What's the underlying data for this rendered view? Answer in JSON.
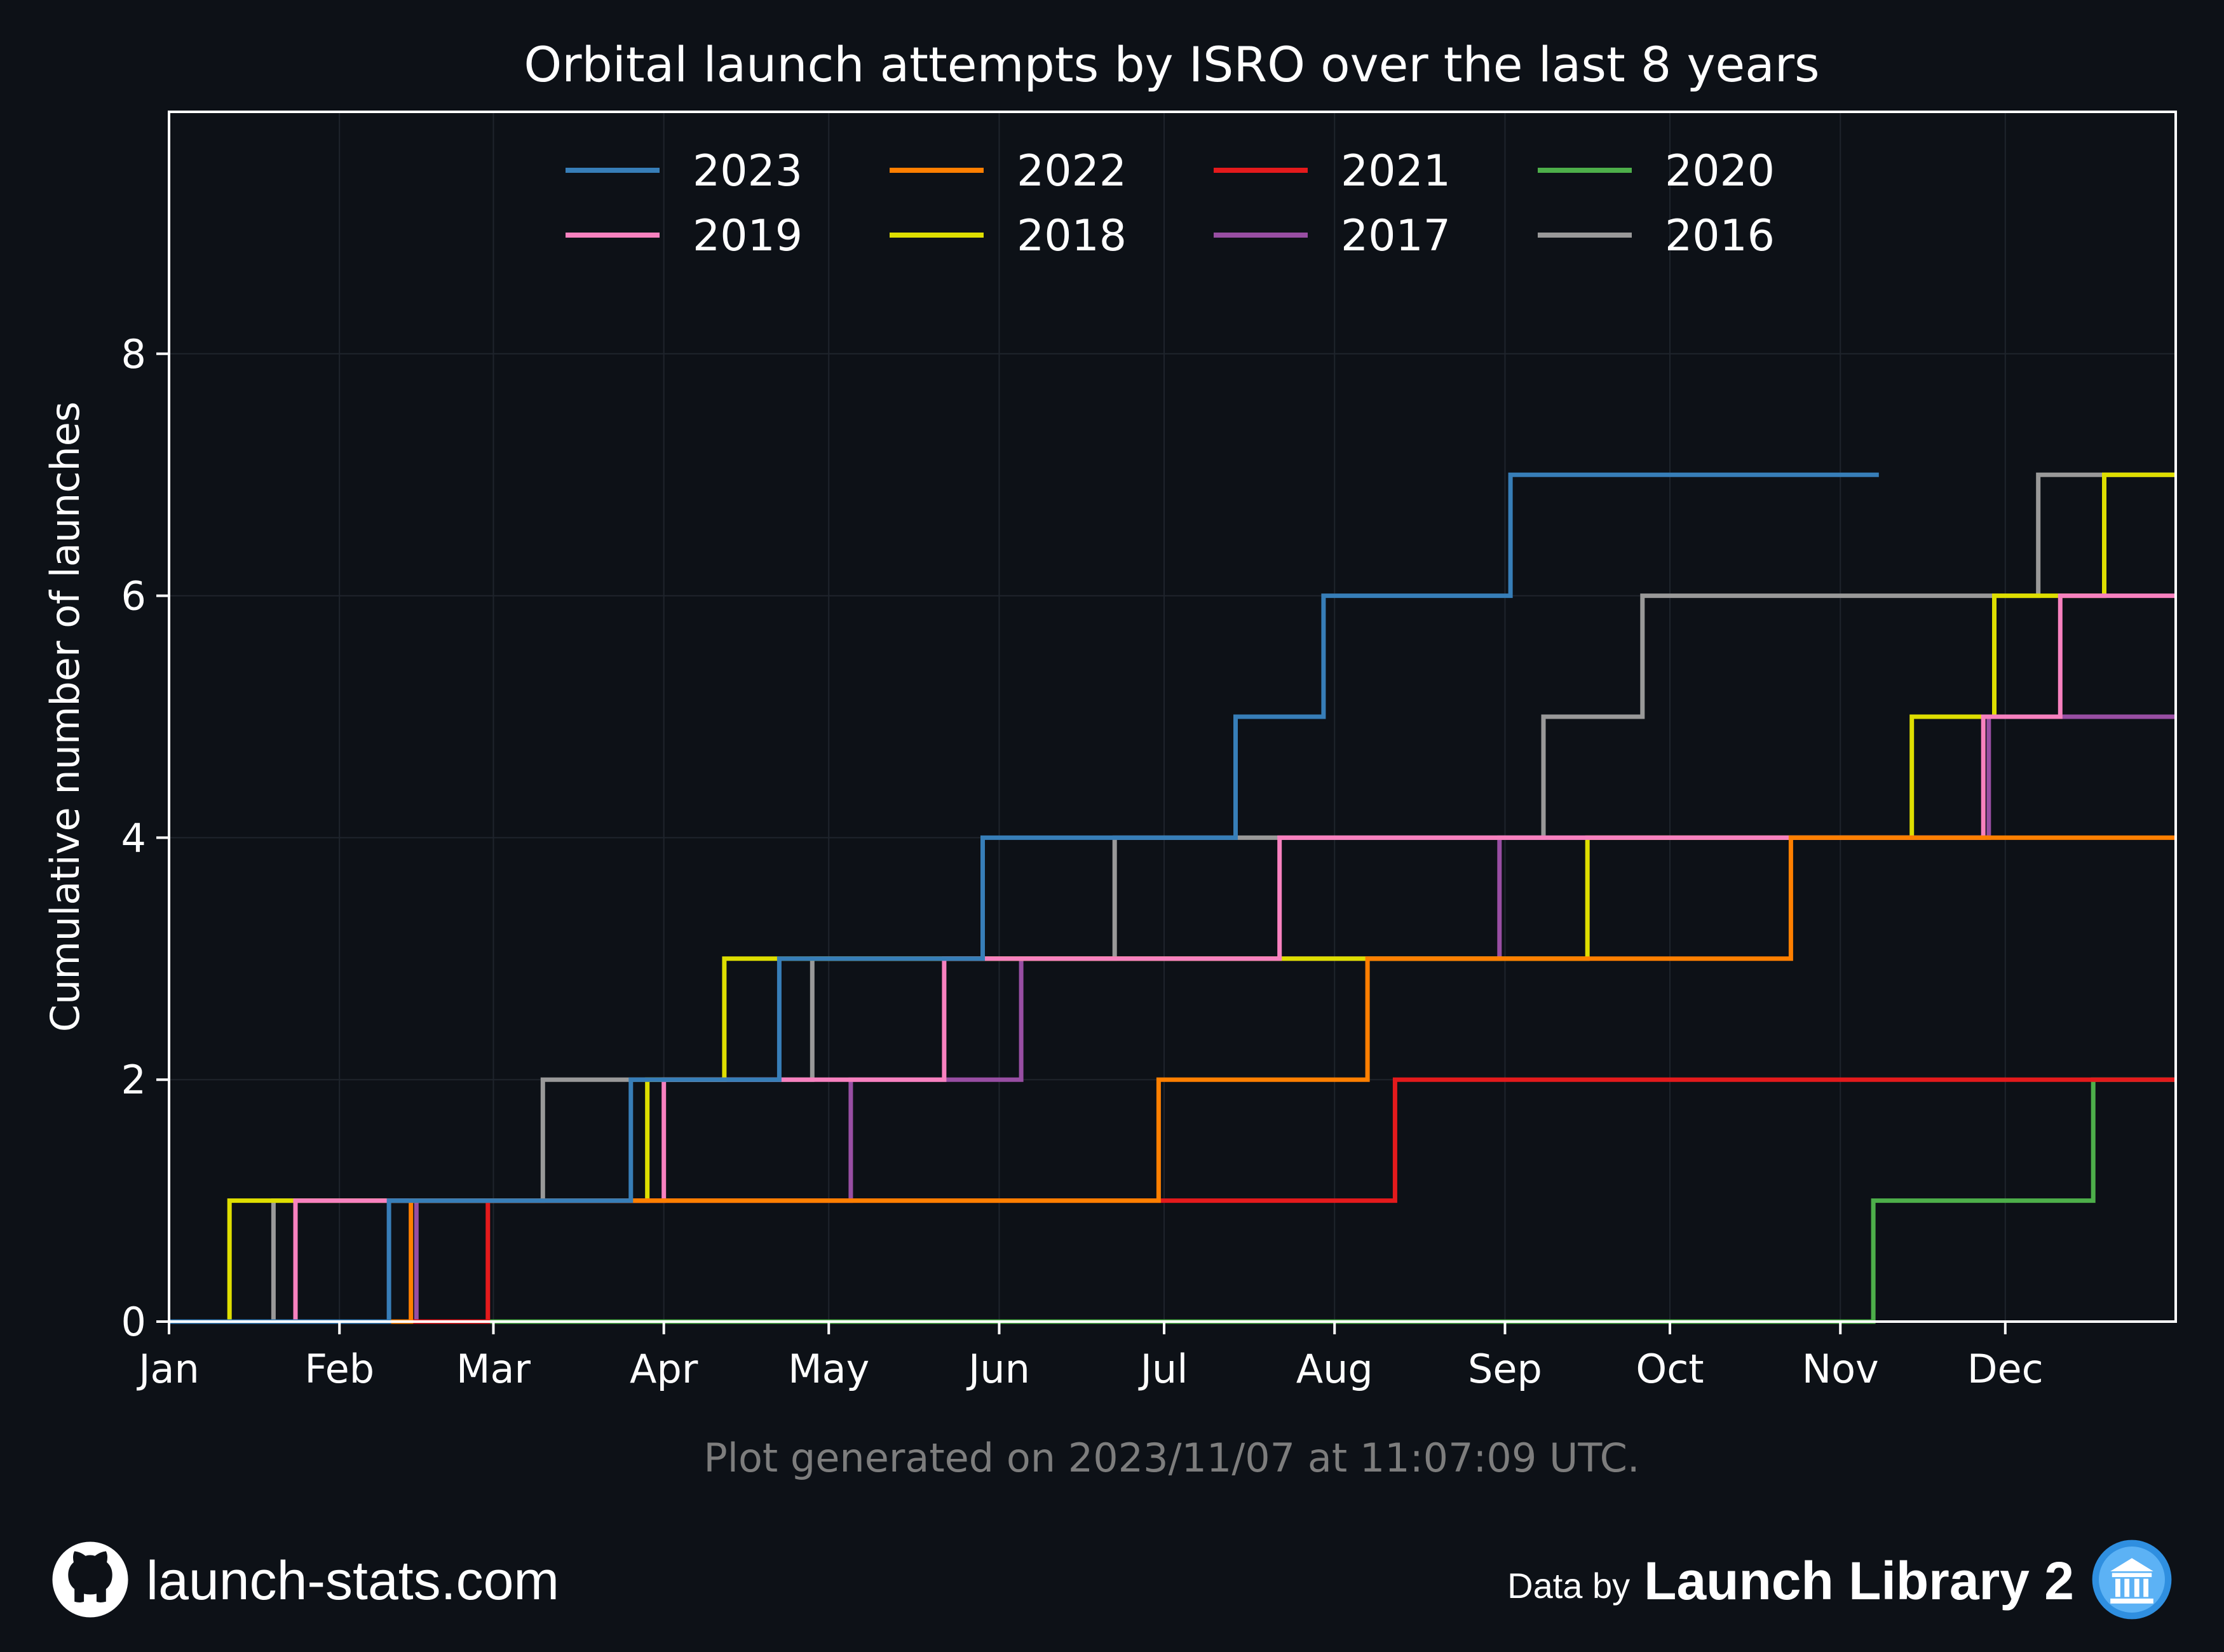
{
  "chart_data": {
    "type": "line",
    "step": true,
    "title": "Orbital launch attempts by ISRO over the last 8 years",
    "xlabel": "",
    "ylabel": "Cumulative number of launches",
    "x_ticks": [
      "Jan",
      "Feb",
      "Mar",
      "Apr",
      "May",
      "Jun",
      "Jul",
      "Aug",
      "Sep",
      "Oct",
      "Nov",
      "Dec"
    ],
    "y_ticks": [
      0,
      2,
      4,
      6,
      8
    ],
    "ylim": [
      0,
      10
    ],
    "xlim_days": [
      0,
      365
    ],
    "grid": true,
    "legend": "top-center",
    "series": [
      {
        "name": "2023",
        "color": "#377eb8",
        "end_day": 311,
        "events": [
          "2023-02-10",
          "2023-03-26",
          "2023-04-22",
          "2023-05-29",
          "2023-07-14",
          "2023-07-30",
          "2023-09-02"
        ]
      },
      {
        "name": "2022",
        "color": "#ff7f00",
        "end_day": 365,
        "events": [
          "2022-02-14",
          "2022-06-30",
          "2022-08-07",
          "2022-10-23"
        ]
      },
      {
        "name": "2021",
        "color": "#e41a1c",
        "end_day": 365,
        "events": [
          "2021-02-28",
          "2021-08-12"
        ]
      },
      {
        "name": "2020",
        "color": "#4daf4a",
        "end_day": 365,
        "events": [
          "2020-11-07",
          "2020-12-17"
        ]
      },
      {
        "name": "2019",
        "color": "#f781bf",
        "end_day": 365,
        "events": [
          "2019-01-24",
          "2019-04-01",
          "2019-05-22",
          "2019-07-22",
          "2019-11-27",
          "2019-12-11"
        ]
      },
      {
        "name": "2018",
        "color": "#dede00",
        "end_day": 365,
        "events": [
          "2018-01-12",
          "2018-03-29",
          "2018-04-12",
          "2018-09-16",
          "2018-11-14",
          "2018-11-29",
          "2018-12-19"
        ]
      },
      {
        "name": "2017",
        "color": "#984ea3",
        "end_day": 365,
        "events": [
          "2017-02-15",
          "2017-05-05",
          "2017-06-05",
          "2017-08-31",
          "2017-11-28"
        ]
      },
      {
        "name": "2016",
        "color": "#999999",
        "end_day": 365,
        "events": [
          "2016-01-20",
          "2016-03-10",
          "2016-04-28",
          "2016-06-22",
          "2016-09-08",
          "2016-09-26",
          "2016-12-07"
        ]
      }
    ]
  },
  "footnote": "Plot generated on 2023/11/07 at 11:07:09 UTC.",
  "footer": {
    "site": "launch-stats.com",
    "data_by": "Data by",
    "library": "Launch Library 2",
    "site_icon": "github-icon",
    "library_icon": "launch-library-icon"
  },
  "colors": {
    "background": "#0d1117",
    "axis": "#ffffff",
    "grid": "#1f242c",
    "footnote": "#7d7d7d"
  }
}
